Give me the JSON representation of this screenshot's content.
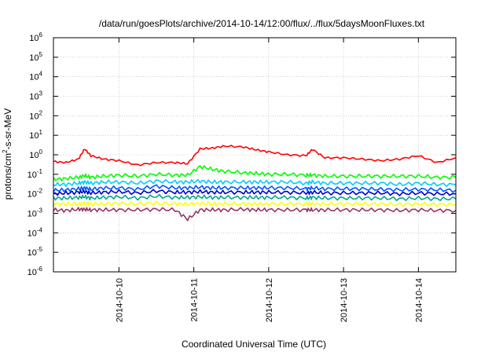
{
  "chart_data": {
    "type": "line",
    "title": "/data/run/goesPlots/archive/2014-10-14/12:00/flux/../flux/5daysMoonFluxes.txt",
    "xlabel": "Coordinated Universal Time (UTC)",
    "ylabel": {
      "base": "protons/cm",
      "exp": "2",
      "rest": "-s-sr-MeV"
    },
    "yscale": "log",
    "ylim": [
      1e-06,
      1000000.0
    ],
    "xlim": [
      "2014-10-09T03:00",
      "2014-10-14T12:00"
    ],
    "grid": true,
    "legend": "none",
    "x_ticks": [
      "2014-10-10",
      "2014-10-11",
      "2014-10-12",
      "2014-10-13",
      "2014-10-14"
    ],
    "y_ticks": [
      {
        "base": "10",
        "exp": "-6",
        "value": 1e-06
      },
      {
        "base": "10",
        "exp": "-5",
        "value": 1e-05
      },
      {
        "base": "10",
        "exp": "-4",
        "value": 0.0001
      },
      {
        "base": "10",
        "exp": "-3",
        "value": 0.001
      },
      {
        "base": "10",
        "exp": "-2",
        "value": 0.01
      },
      {
        "base": "10",
        "exp": "-1",
        "value": 0.1
      },
      {
        "base": "10",
        "exp": "0",
        "value": 1
      },
      {
        "base": "10",
        "exp": "1",
        "value": 10
      },
      {
        "base": "10",
        "exp": "2",
        "value": 100
      },
      {
        "base": "10",
        "exp": "3",
        "value": 1000
      },
      {
        "base": "10",
        "exp": "4",
        "value": 10000
      },
      {
        "base": "10",
        "exp": "5",
        "value": 100000
      },
      {
        "base": "10",
        "exp": "6",
        "value": 1000000
      }
    ],
    "x": [
      "2014-10-09T03:00",
      "2014-10-09T07:00",
      "2014-10-09T11:00",
      "2014-10-09T13:00",
      "2014-10-09T15:00",
      "2014-10-09T19:00",
      "2014-10-10T00:00",
      "2014-10-10T06:00",
      "2014-10-10T12:00",
      "2014-10-10T18:00",
      "2014-10-10T22:00",
      "2014-10-11T02:00",
      "2014-10-11T06:00",
      "2014-10-11T10:00",
      "2014-10-11T16:00",
      "2014-10-11T20:00",
      "2014-10-12T00:00",
      "2014-10-12T06:00",
      "2014-10-12T12:00",
      "2014-10-12T14:00",
      "2014-10-12T18:00",
      "2014-10-13T00:00",
      "2014-10-13T06:00",
      "2014-10-13T12:00",
      "2014-10-13T18:00",
      "2014-10-14T00:00",
      "2014-10-14T06:00",
      "2014-10-14T12:00"
    ],
    "series": [
      {
        "color": "#ff0000",
        "values": [
          0.45,
          0.4,
          0.6,
          2.0,
          0.9,
          0.6,
          0.5,
          0.3,
          0.4,
          0.4,
          0.35,
          2.0,
          2.2,
          2.8,
          2.5,
          1.8,
          1.4,
          1.0,
          0.9,
          1.9,
          0.7,
          0.7,
          0.6,
          0.5,
          0.6,
          0.9,
          0.4,
          0.7
        ]
      },
      {
        "color": "#00ff00",
        "values": [
          0.055,
          0.06,
          0.07,
          0.085,
          0.07,
          0.08,
          0.09,
          0.08,
          0.1,
          0.09,
          0.09,
          0.25,
          0.18,
          0.14,
          0.12,
          0.11,
          0.1,
          0.1,
          0.09,
          0.09,
          0.08,
          0.08,
          0.08,
          0.08,
          0.08,
          0.08,
          0.07,
          0.07
        ]
      },
      {
        "color": "#00ccff",
        "values": [
          0.03,
          0.03,
          0.035,
          0.04,
          0.035,
          0.04,
          0.04,
          0.035,
          0.045,
          0.04,
          0.04,
          0.045,
          0.04,
          0.04,
          0.04,
          0.04,
          0.04,
          0.04,
          0.035,
          0.04,
          0.035,
          0.035,
          0.035,
          0.035,
          0.03,
          0.035,
          0.03,
          0.03
        ]
      },
      {
        "color": "#0055ff",
        "values": [
          0.015,
          0.016,
          0.018,
          0.02,
          0.017,
          0.02,
          0.02,
          0.017,
          0.025,
          0.02,
          0.02,
          0.022,
          0.02,
          0.02,
          0.02,
          0.02,
          0.02,
          0.02,
          0.018,
          0.02,
          0.018,
          0.018,
          0.018,
          0.017,
          0.016,
          0.017,
          0.016,
          0.015
        ]
      },
      {
        "color": "#0000cc",
        "values": [
          0.01,
          0.011,
          0.012,
          0.013,
          0.011,
          0.012,
          0.013,
          0.011,
          0.014,
          0.012,
          0.012,
          0.013,
          0.012,
          0.012,
          0.012,
          0.012,
          0.012,
          0.012,
          0.011,
          0.012,
          0.011,
          0.011,
          0.011,
          0.011,
          0.01,
          0.011,
          0.01,
          0.01
        ]
      },
      {
        "color": "#00aa88",
        "values": [
          0.006,
          0.006,
          0.0065,
          0.007,
          0.006,
          0.0065,
          0.007,
          0.006,
          0.0075,
          0.0065,
          0.0065,
          0.007,
          0.0065,
          0.0065,
          0.0065,
          0.0065,
          0.0065,
          0.0065,
          0.006,
          0.0065,
          0.006,
          0.006,
          0.006,
          0.006,
          0.0055,
          0.006,
          0.0055,
          0.0055
        ]
      },
      {
        "color": "#ffff00",
        "values": [
          0.003,
          0.003,
          0.003,
          0.0032,
          0.003,
          0.003,
          0.0032,
          0.003,
          0.0033,
          0.003,
          0.003,
          0.0032,
          0.003,
          0.003,
          0.003,
          0.003,
          0.003,
          0.003,
          0.003,
          0.003,
          0.003,
          0.003,
          0.003,
          0.003,
          0.0028,
          0.003,
          0.0028,
          0.0028
        ]
      },
      {
        "color": "#993366",
        "values": [
          0.0015,
          0.0014,
          0.0016,
          0.0016,
          0.0015,
          0.0015,
          0.0015,
          0.0015,
          0.0016,
          0.0015,
          0.0005,
          0.0015,
          0.0015,
          0.0015,
          0.0016,
          0.0015,
          0.0015,
          0.0015,
          0.0015,
          0.0015,
          0.0015,
          0.0015,
          0.0015,
          0.0015,
          0.0014,
          0.0015,
          0.0014,
          0.0014
        ]
      }
    ]
  }
}
